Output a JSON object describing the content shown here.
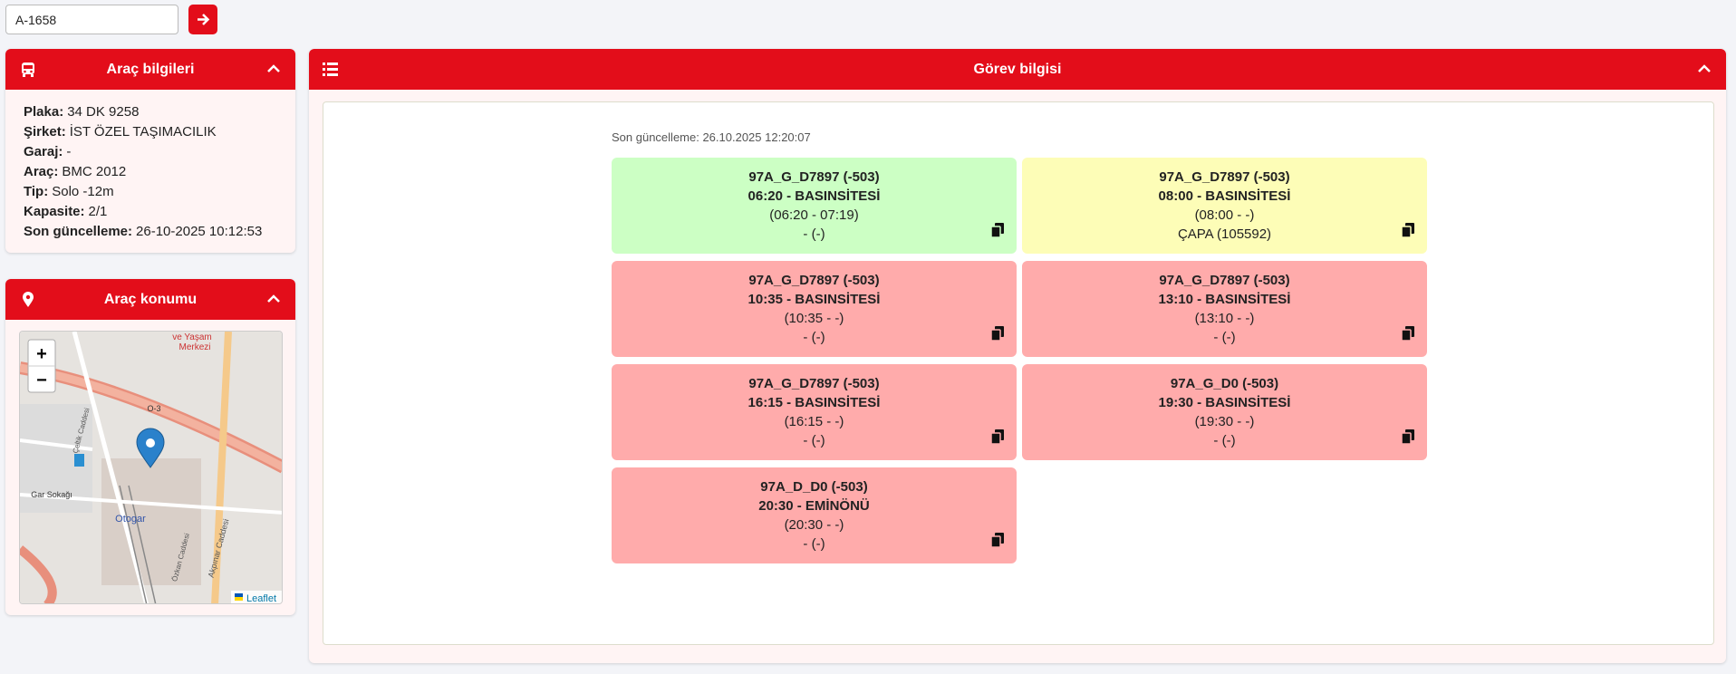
{
  "search": {
    "value": "A-1658"
  },
  "vehicle_panel": {
    "title": "Araç bilgileri",
    "rows": [
      {
        "label": "Plaka:",
        "value": "34 DK 9258"
      },
      {
        "label": "Şirket:",
        "value": "İST ÖZEL TAŞIMACILIK"
      },
      {
        "label": "Garaj:",
        "value": "-"
      },
      {
        "label": "Araç:",
        "value": "BMC 2012"
      },
      {
        "label": "Tip:",
        "value": "Solo -12m"
      },
      {
        "label": "Kapasite:",
        "value": "2/1"
      },
      {
        "label": "Son güncelleme:",
        "value": "26-10-2025 10:12:53"
      }
    ]
  },
  "location_panel": {
    "title": "Araç konumu",
    "map": {
      "zoom_in": "+",
      "zoom_out": "−",
      "attribution": "Leaflet",
      "labels": [
        "Otogar",
        "O-3",
        "Gar Sokağı",
        "ve Yaşam",
        "Merkezi",
        "Akpınar Caddesi",
        "Çeltik Caddesi",
        "Özkan Caddesi"
      ]
    }
  },
  "task_panel": {
    "title": "Görev bilgisi",
    "updated": "Son güncelleme: 26.10.2025 12:20:07",
    "cards": [
      {
        "color": "#ccffc4",
        "lines": [
          "97A_G_D7897 (-503)",
          "06:20 - BASINSİTESİ",
          "(06:20 - 07:19)",
          "- (-)"
        ]
      },
      {
        "color": "#fdfdb7",
        "lines": [
          "97A_G_D7897 (-503)",
          "08:00 - BASINSİTESİ",
          "(08:00 - -)",
          "ÇAPA (105592)"
        ]
      },
      {
        "color": "#ffabab",
        "lines": [
          "97A_G_D7897 (-503)",
          "10:35 - BASINSİTESİ",
          "(10:35 - -)",
          "- (-)"
        ]
      },
      {
        "color": "#ffabab",
        "lines": [
          "97A_G_D7897 (-503)",
          "13:10 - BASINSİTESİ",
          "(13:10 - -)",
          "- (-)"
        ]
      },
      {
        "color": "#ffabab",
        "lines": [
          "97A_G_D7897 (-503)",
          "16:15 - BASINSİTESİ",
          "(16:15 - -)",
          "- (-)"
        ]
      },
      {
        "color": "#ffabab",
        "lines": [
          "97A_G_D0 (-503)",
          "19:30 - BASINSİTESİ",
          "(19:30 - -)",
          "- (-)"
        ]
      },
      {
        "color": "#ffabab",
        "lines": [
          "97A_D_D0 (-503)",
          "20:30 - EMİNÖNÜ",
          "(20:30 - -)",
          "- (-)"
        ]
      }
    ]
  }
}
